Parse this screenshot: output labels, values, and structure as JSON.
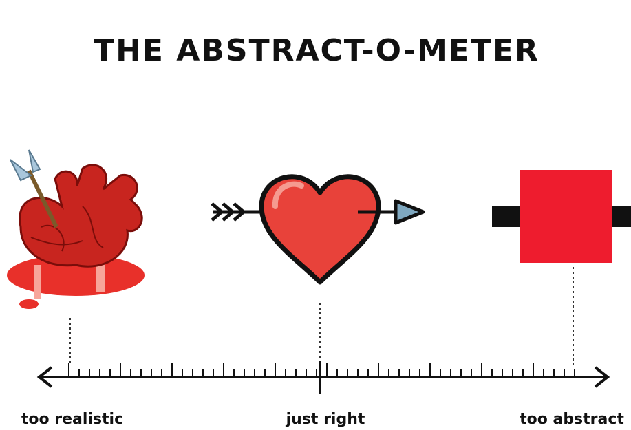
{
  "header": {
    "title": "THE ABSTRACT-O-METER"
  },
  "scale": {
    "labels": [
      "too realistic",
      "just right",
      "too abstract"
    ]
  }
}
